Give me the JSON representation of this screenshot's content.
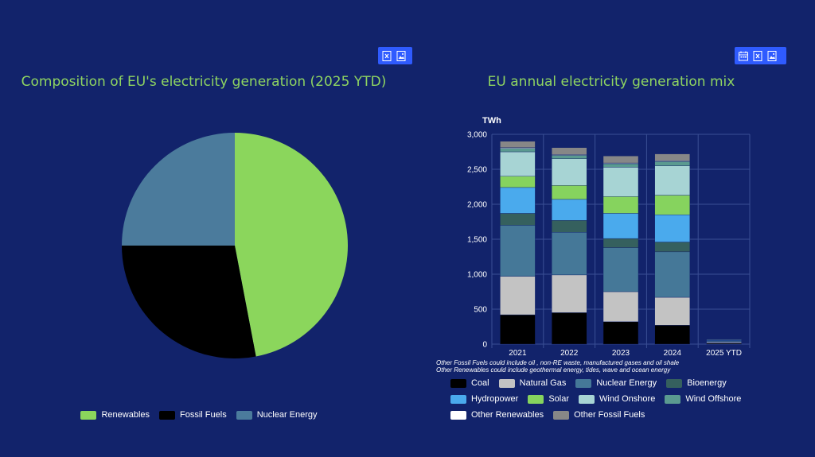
{
  "left": {
    "title": "Composition of EU's electricity generation (2025 YTD)",
    "toolbar_icons": [
      "excel-icon",
      "image-icon"
    ]
  },
  "right": {
    "title": "EU annual electricity generation mix",
    "toolbar_icons": [
      "calendar-icon",
      "excel-icon",
      "image-icon"
    ],
    "notes": [
      "Other Fossil Fuels could include oil , non-RE waste, manufactured gases and oil shale",
      "Other Renewables could include geothermal energy, tides, wave and ocean energy"
    ]
  },
  "chart_data": [
    {
      "type": "pie",
      "title": "Composition of EU's electricity generation (2025 YTD)",
      "categories": [
        "Renewables",
        "Fossil Fuels",
        "Nuclear Energy"
      ],
      "values": [
        47,
        28,
        25
      ],
      "colors": [
        "#8bd65c",
        "#000000",
        "#4b7b9c"
      ],
      "legend": "bottom"
    },
    {
      "type": "bar",
      "stacked": true,
      "title": "EU annual electricity generation mix",
      "ylabel": "TWh",
      "ylim": [
        0,
        3000
      ],
      "yticks": [
        0,
        500,
        1000,
        1500,
        2000,
        2500,
        3000
      ],
      "ytick_labels": [
        "0",
        "500",
        "1,000",
        "1,500",
        "2,000",
        "2,500",
        "3,000"
      ],
      "categories": [
        "2021",
        "2022",
        "2023",
        "2024",
        "2025 YTD"
      ],
      "series": [
        {
          "name": "Coal",
          "color": "#000000",
          "values": [
            420,
            450,
            320,
            270,
            15
          ]
        },
        {
          "name": "Natural Gas",
          "color": "#c3c3c3",
          "values": [
            550,
            540,
            430,
            400,
            15
          ]
        },
        {
          "name": "Nuclear Energy",
          "color": "#457898",
          "values": [
            730,
            610,
            630,
            650,
            15
          ]
        },
        {
          "name": "Bioenergy",
          "color": "#35605e",
          "values": [
            170,
            170,
            130,
            140,
            5
          ]
        },
        {
          "name": "Hydropower",
          "color": "#4aaaed",
          "values": [
            370,
            300,
            360,
            390,
            8
          ]
        },
        {
          "name": "Solar",
          "color": "#86d35e",
          "values": [
            160,
            200,
            240,
            280,
            5
          ]
        },
        {
          "name": "Wind Onshore",
          "color": "#a7d4d4",
          "values": [
            350,
            380,
            420,
            420,
            8
          ]
        },
        {
          "name": "Wind Offshore",
          "color": "#5a9a90",
          "values": [
            50,
            50,
            50,
            60,
            3
          ]
        },
        {
          "name": "Other Renewables",
          "color": "#ffffff",
          "values": [
            10,
            10,
            10,
            10,
            1
          ]
        },
        {
          "name": "Other Fossil Fuels",
          "color": "#878787",
          "values": [
            90,
            100,
            100,
            100,
            3
          ]
        }
      ],
      "grid": true,
      "legend": "bottom"
    }
  ]
}
